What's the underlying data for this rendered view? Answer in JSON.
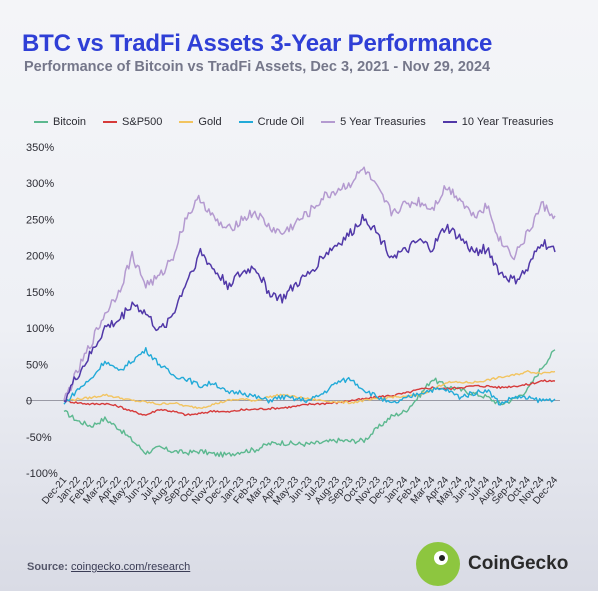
{
  "title": "BTC vs TradFi Assets 3-Year Performance",
  "subtitle": "Performance of Bitcoin vs TradFi Assets, Dec 3, 2021 - Nov 29, 2024",
  "source": {
    "label": "Source:",
    "link": "coingecko.com/research"
  },
  "brand": {
    "name": "CoinGecko",
    "logo_icon": "gecko-logo-icon"
  },
  "chart_data": {
    "type": "line",
    "y_tick_labels": [
      "350%",
      "300%",
      "250%",
      "200%",
      "150%",
      "100%",
      "50%",
      "0",
      "-50%",
      "-100%"
    ],
    "y_ticks": [
      350,
      300,
      250,
      200,
      150,
      100,
      50,
      0,
      -50,
      -100
    ],
    "ylim": [
      -100,
      350
    ],
    "x": [
      "Dec-21",
      "Jan-22",
      "Feb-22",
      "Mar-22",
      "Apr-22",
      "May-22",
      "Jun-22",
      "Jul-22",
      "Aug-22",
      "Sep-22",
      "Oct-22",
      "Nov-22",
      "Dec-22",
      "Jan-23",
      "Feb-23",
      "Mar-23",
      "Apr-23",
      "May-23",
      "Jun-23",
      "Jul-23",
      "Aug-23",
      "Sep-23",
      "Oct-23",
      "Nov-23",
      "Dec-23",
      "Jan-24",
      "Feb-24",
      "Mar-24",
      "Apr-24",
      "May-24",
      "Jun-24",
      "Jul-24",
      "Aug-24",
      "Sep-24",
      "Oct-24",
      "Nov-24",
      "Dec-24"
    ],
    "grid": false,
    "legend_position": "top",
    "series": [
      {
        "name": "Bitcoin",
        "color": "#5cb88f",
        "values": [
          -15,
          -28,
          -35,
          -25,
          -38,
          -55,
          -72,
          -65,
          -70,
          -72,
          -70,
          -74,
          -75,
          -70,
          -68,
          -60,
          -58,
          -60,
          -60,
          -58,
          -55,
          -56,
          -55,
          -38,
          -22,
          -15,
          5,
          30,
          20,
          15,
          10,
          5,
          -5,
          2,
          15,
          45,
          70
        ]
      },
      {
        "name": "S&P500",
        "color": "#d63a3a",
        "values": [
          0,
          -3,
          -5,
          -4,
          -8,
          -15,
          -20,
          -12,
          -15,
          -20,
          -18,
          -14,
          -16,
          -13,
          -12,
          -11,
          -10,
          -8,
          -5,
          -4,
          -3,
          0,
          2,
          5,
          7,
          10,
          15,
          18,
          16,
          18,
          20,
          20,
          18,
          20,
          22,
          27,
          27
        ]
      },
      {
        "name": "Gold",
        "color": "#f2c460",
        "values": [
          0,
          2,
          4,
          8,
          4,
          0,
          -2,
          -5,
          -3,
          -8,
          -10,
          -5,
          0,
          2,
          0,
          5,
          8,
          5,
          2,
          0,
          -2,
          -3,
          0,
          2,
          5,
          5,
          8,
          15,
          25,
          25,
          25,
          28,
          32,
          35,
          40,
          38,
          40
        ]
      },
      {
        "name": "Crude Oil",
        "color": "#22aad8",
        "values": [
          -5,
          15,
          30,
          55,
          40,
          55,
          70,
          50,
          35,
          30,
          20,
          25,
          10,
          12,
          5,
          0,
          5,
          2,
          0,
          10,
          25,
          30,
          15,
          5,
          -5,
          2,
          10,
          15,
          15,
          5,
          10,
          15,
          -5,
          5,
          3,
          0,
          2
        ]
      },
      {
        "name": "5 Year Treasuries",
        "color": "#b49ad0",
        "values": [
          0,
          40,
          80,
          120,
          150,
          200,
          160,
          170,
          200,
          255,
          280,
          250,
          235,
          250,
          260,
          240,
          230,
          245,
          260,
          280,
          290,
          300,
          320,
          290,
          260,
          270,
          275,
          265,
          295,
          280,
          255,
          270,
          220,
          200,
          230,
          270,
          255
        ]
      },
      {
        "name": "10 Year Treasuries",
        "color": "#5138a8",
        "values": [
          0,
          35,
          65,
          100,
          110,
          135,
          120,
          95,
          120,
          165,
          205,
          180,
          160,
          175,
          185,
          150,
          140,
          160,
          175,
          200,
          215,
          230,
          255,
          230,
          200,
          205,
          220,
          210,
          240,
          225,
          205,
          210,
          175,
          165,
          180,
          220,
          205
        ]
      }
    ]
  }
}
